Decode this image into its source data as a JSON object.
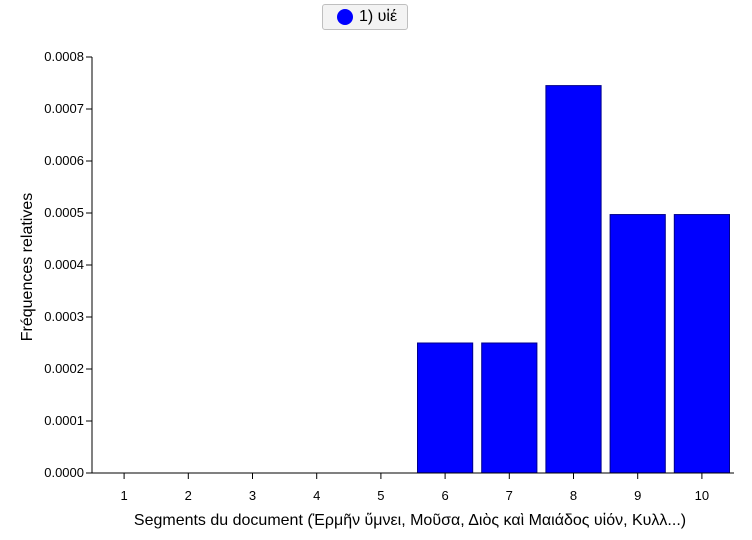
{
  "chart_data": {
    "type": "bar",
    "categories": [
      "1",
      "2",
      "3",
      "4",
      "5",
      "6",
      "7",
      "8",
      "9",
      "10"
    ],
    "series": [
      {
        "name": "1) υἱέ",
        "color": "#0000ff",
        "values": [
          0,
          0,
          0,
          0,
          0,
          0.00025,
          0.00025,
          0.000745,
          0.000497,
          0.000497
        ]
      }
    ],
    "xlabel": "Segments du document (Ἑρμῆν ὕμνει, Μοῦσα, Διὸς καὶ Μαιάδος υἱόν, Κυλλ...)",
    "ylabel": "Fréquences relatives",
    "ylim": [
      0,
      0.0008
    ],
    "yticks": [
      "0.0000",
      "0.0001",
      "0.0002",
      "0.0003",
      "0.0004",
      "0.0005",
      "0.0006",
      "0.0007",
      "0.0008"
    ],
    "legend_position": "top-center",
    "grid": false
  }
}
